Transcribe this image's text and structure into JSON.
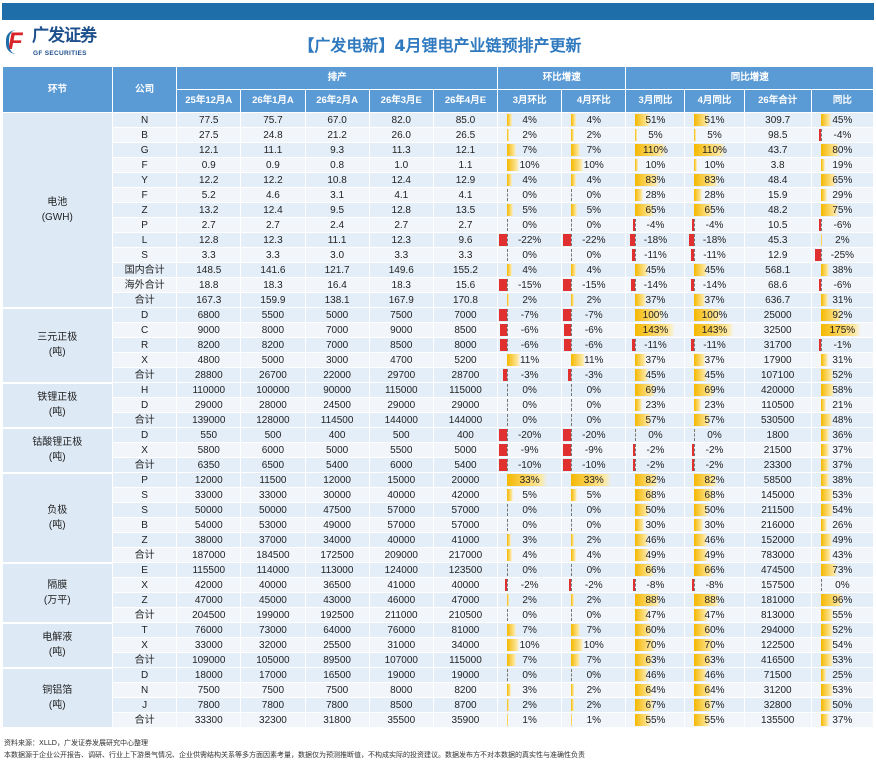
{
  "header": {
    "logo_cn": "广发证券",
    "logo_en": "GF SECURITIES",
    "title": "【广发电新】4月锂电产业链预排产更新"
  },
  "columns": {
    "segment": "环节",
    "company": "公司",
    "production": "排产",
    "mom": "环比增速",
    "yoy": "同比增速",
    "sub": [
      "25年12月A",
      "26年1月A",
      "26年2月A",
      "26年3月E",
      "26年4月E",
      "3月环比",
      "4月环比",
      "3月同比",
      "4月同比",
      "26年合计",
      "同比"
    ]
  },
  "colors": {
    "header": "#5b9bd5",
    "topbar": "#1d6ea9",
    "bar_positive": "#f5b800",
    "bar_negative": "#e03030"
  },
  "groups": [
    {
      "name": "电池",
      "unit": "(GWH)",
      "rows": [
        [
          "N",
          "77.5",
          "75.7",
          "67.0",
          "82.0",
          "85.0",
          "4%",
          "4%",
          "51%",
          "51%",
          "309.7",
          "45%"
        ],
        [
          "B",
          "27.5",
          "24.8",
          "21.2",
          "26.0",
          "26.5",
          "2%",
          "2%",
          "5%",
          "5%",
          "98.5",
          "-4%"
        ],
        [
          "G",
          "12.1",
          "11.1",
          "9.3",
          "11.3",
          "12.1",
          "7%",
          "7%",
          "110%",
          "110%",
          "43.7",
          "80%"
        ],
        [
          "F",
          "0.9",
          "0.9",
          "0.8",
          "1.0",
          "1.1",
          "10%",
          "10%",
          "10%",
          "10%",
          "3.8",
          "19%"
        ],
        [
          "Y",
          "12.2",
          "12.2",
          "10.8",
          "12.4",
          "12.9",
          "4%",
          "4%",
          "83%",
          "83%",
          "48.4",
          "65%"
        ],
        [
          "F",
          "5.2",
          "4.6",
          "3.1",
          "4.1",
          "4.1",
          "0%",
          "0%",
          "28%",
          "28%",
          "15.9",
          "29%"
        ],
        [
          "Z",
          "13.2",
          "12.4",
          "9.5",
          "12.8",
          "13.5",
          "5%",
          "5%",
          "65%",
          "65%",
          "48.2",
          "75%"
        ],
        [
          "P",
          "2.7",
          "2.7",
          "2.4",
          "2.7",
          "2.7",
          "0%",
          "0%",
          "-4%",
          "-4%",
          "10.5",
          "-6%"
        ],
        [
          "L",
          "12.8",
          "12.3",
          "11.1",
          "12.3",
          "9.6",
          "-22%",
          "-22%",
          "-18%",
          "-18%",
          "45.3",
          "2%"
        ],
        [
          "S",
          "3.3",
          "3.3",
          "3.0",
          "3.3",
          "3.3",
          "0%",
          "0%",
          "-11%",
          "-11%",
          "12.9",
          "-25%"
        ],
        [
          "国内合计",
          "148.5",
          "141.6",
          "121.7",
          "149.6",
          "155.2",
          "4%",
          "4%",
          "45%",
          "45%",
          "568.1",
          "38%"
        ],
        [
          "海外合计",
          "18.8",
          "18.3",
          "16.4",
          "18.3",
          "15.6",
          "-15%",
          "-15%",
          "-14%",
          "-14%",
          "68.6",
          "-6%"
        ],
        [
          "合计",
          "167.3",
          "159.9",
          "138.1",
          "167.9",
          "170.8",
          "2%",
          "2%",
          "37%",
          "37%",
          "636.7",
          "31%"
        ]
      ]
    },
    {
      "name": "三元正极",
      "unit": "(吨)",
      "rows": [
        [
          "D",
          "6800",
          "5500",
          "5000",
          "7500",
          "7000",
          "-7%",
          "-7%",
          "100%",
          "100%",
          "25000",
          "92%"
        ],
        [
          "C",
          "9000",
          "8000",
          "7000",
          "9000",
          "8500",
          "-6%",
          "-6%",
          "143%",
          "143%",
          "32500",
          "175%"
        ],
        [
          "R",
          "8200",
          "8200",
          "7000",
          "8500",
          "8000",
          "-6%",
          "-6%",
          "-11%",
          "-11%",
          "31700",
          "-1%"
        ],
        [
          "X",
          "4800",
          "5000",
          "3000",
          "4700",
          "5200",
          "11%",
          "11%",
          "37%",
          "37%",
          "17900",
          "31%"
        ],
        [
          "合计",
          "28800",
          "26700",
          "22000",
          "29700",
          "28700",
          "-3%",
          "-3%",
          "45%",
          "45%",
          "107100",
          "52%"
        ]
      ]
    },
    {
      "name": "铁锂正极",
      "unit": "(吨)",
      "rows": [
        [
          "H",
          "110000",
          "100000",
          "90000",
          "115000",
          "115000",
          "0%",
          "0%",
          "69%",
          "69%",
          "420000",
          "58%"
        ],
        [
          "D",
          "29000",
          "28000",
          "24500",
          "29000",
          "29000",
          "0%",
          "0%",
          "23%",
          "23%",
          "110500",
          "21%"
        ],
        [
          "合计",
          "139000",
          "128000",
          "114500",
          "144000",
          "144000",
          "0%",
          "0%",
          "57%",
          "57%",
          "530500",
          "48%"
        ]
      ]
    },
    {
      "name": "钴酸锂正极",
      "unit": "(吨)",
      "rows": [
        [
          "D",
          "550",
          "500",
          "400",
          "500",
          "400",
          "-20%",
          "-20%",
          "0%",
          "0%",
          "1800",
          "36%"
        ],
        [
          "X",
          "5800",
          "6000",
          "5000",
          "5500",
          "5000",
          "-9%",
          "-9%",
          "-2%",
          "-2%",
          "21500",
          "37%"
        ],
        [
          "合计",
          "6350",
          "6500",
          "5400",
          "6000",
          "5400",
          "-10%",
          "-10%",
          "-2%",
          "-2%",
          "23300",
          "37%"
        ]
      ]
    },
    {
      "name": "负极",
      "unit": "(吨)",
      "rows": [
        [
          "P",
          "12000",
          "11500",
          "12000",
          "15000",
          "20000",
          "33%",
          "33%",
          "82%",
          "82%",
          "58500",
          "38%"
        ],
        [
          "S",
          "33000",
          "33000",
          "30000",
          "40000",
          "42000",
          "5%",
          "5%",
          "68%",
          "68%",
          "145000",
          "53%"
        ],
        [
          "S",
          "50000",
          "50000",
          "47500",
          "57000",
          "57000",
          "0%",
          "0%",
          "50%",
          "50%",
          "211500",
          "54%"
        ],
        [
          "B",
          "54000",
          "53000",
          "49000",
          "57000",
          "57000",
          "0%",
          "0%",
          "30%",
          "30%",
          "216000",
          "26%"
        ],
        [
          "Z",
          "38000",
          "37000",
          "34000",
          "40000",
          "41000",
          "3%",
          "2%",
          "46%",
          "46%",
          "152000",
          "49%"
        ],
        [
          "合计",
          "187000",
          "184500",
          "172500",
          "209000",
          "217000",
          "4%",
          "4%",
          "49%",
          "49%",
          "783000",
          "43%"
        ]
      ]
    },
    {
      "name": "隔膜",
      "unit": "(万平)",
      "rows": [
        [
          "E",
          "115500",
          "114000",
          "113000",
          "124000",
          "123500",
          "0%",
          "0%",
          "66%",
          "66%",
          "474500",
          "73%"
        ],
        [
          "X",
          "42000",
          "40000",
          "36500",
          "41000",
          "40000",
          "-2%",
          "-2%",
          "-8%",
          "-8%",
          "157500",
          "0%"
        ],
        [
          "Z",
          "47000",
          "45000",
          "43000",
          "46000",
          "47000",
          "2%",
          "2%",
          "88%",
          "88%",
          "181000",
          "96%"
        ],
        [
          "合计",
          "204500",
          "199000",
          "192500",
          "211000",
          "210500",
          "0%",
          "0%",
          "47%",
          "47%",
          "813000",
          "55%"
        ]
      ]
    },
    {
      "name": "电解液",
      "unit": "(吨)",
      "rows": [
        [
          "T",
          "76000",
          "73000",
          "64000",
          "76000",
          "81000",
          "7%",
          "7%",
          "60%",
          "60%",
          "294000",
          "52%"
        ],
        [
          "X",
          "33000",
          "32000",
          "25500",
          "31000",
          "34000",
          "10%",
          "10%",
          "70%",
          "70%",
          "122500",
          "54%"
        ],
        [
          "合计",
          "109000",
          "105000",
          "89500",
          "107000",
          "115000",
          "7%",
          "7%",
          "63%",
          "63%",
          "416500",
          "53%"
        ]
      ]
    },
    {
      "name": "铜铝箔",
      "unit": "(吨)",
      "rows": [
        [
          "D",
          "18000",
          "17000",
          "16500",
          "19000",
          "19000",
          "0%",
          "0%",
          "46%",
          "46%",
          "71500",
          "25%"
        ],
        [
          "N",
          "7500",
          "7500",
          "7500",
          "8000",
          "8200",
          "3%",
          "2%",
          "64%",
          "64%",
          "31200",
          "53%"
        ],
        [
          "J",
          "7800",
          "7800",
          "7800",
          "8500",
          "8700",
          "2%",
          "2%",
          "67%",
          "67%",
          "32800",
          "50%"
        ],
        [
          "合计",
          "33300",
          "32300",
          "31800",
          "35500",
          "35900",
          "1%",
          "1%",
          "55%",
          "55%",
          "135500",
          "37%"
        ]
      ]
    }
  ],
  "footer": {
    "source": "资料来源：XLLD，广发证券发展研究中心整理",
    "disclaimer": "本数据源于企业公开报告、调研、行业上下游景气情况、企业供需结构关系等多方面因素考量，数据仅为预测推断值，不构成实际的投资建议。数据发布方不对本数据的真实性与准确性负责"
  }
}
